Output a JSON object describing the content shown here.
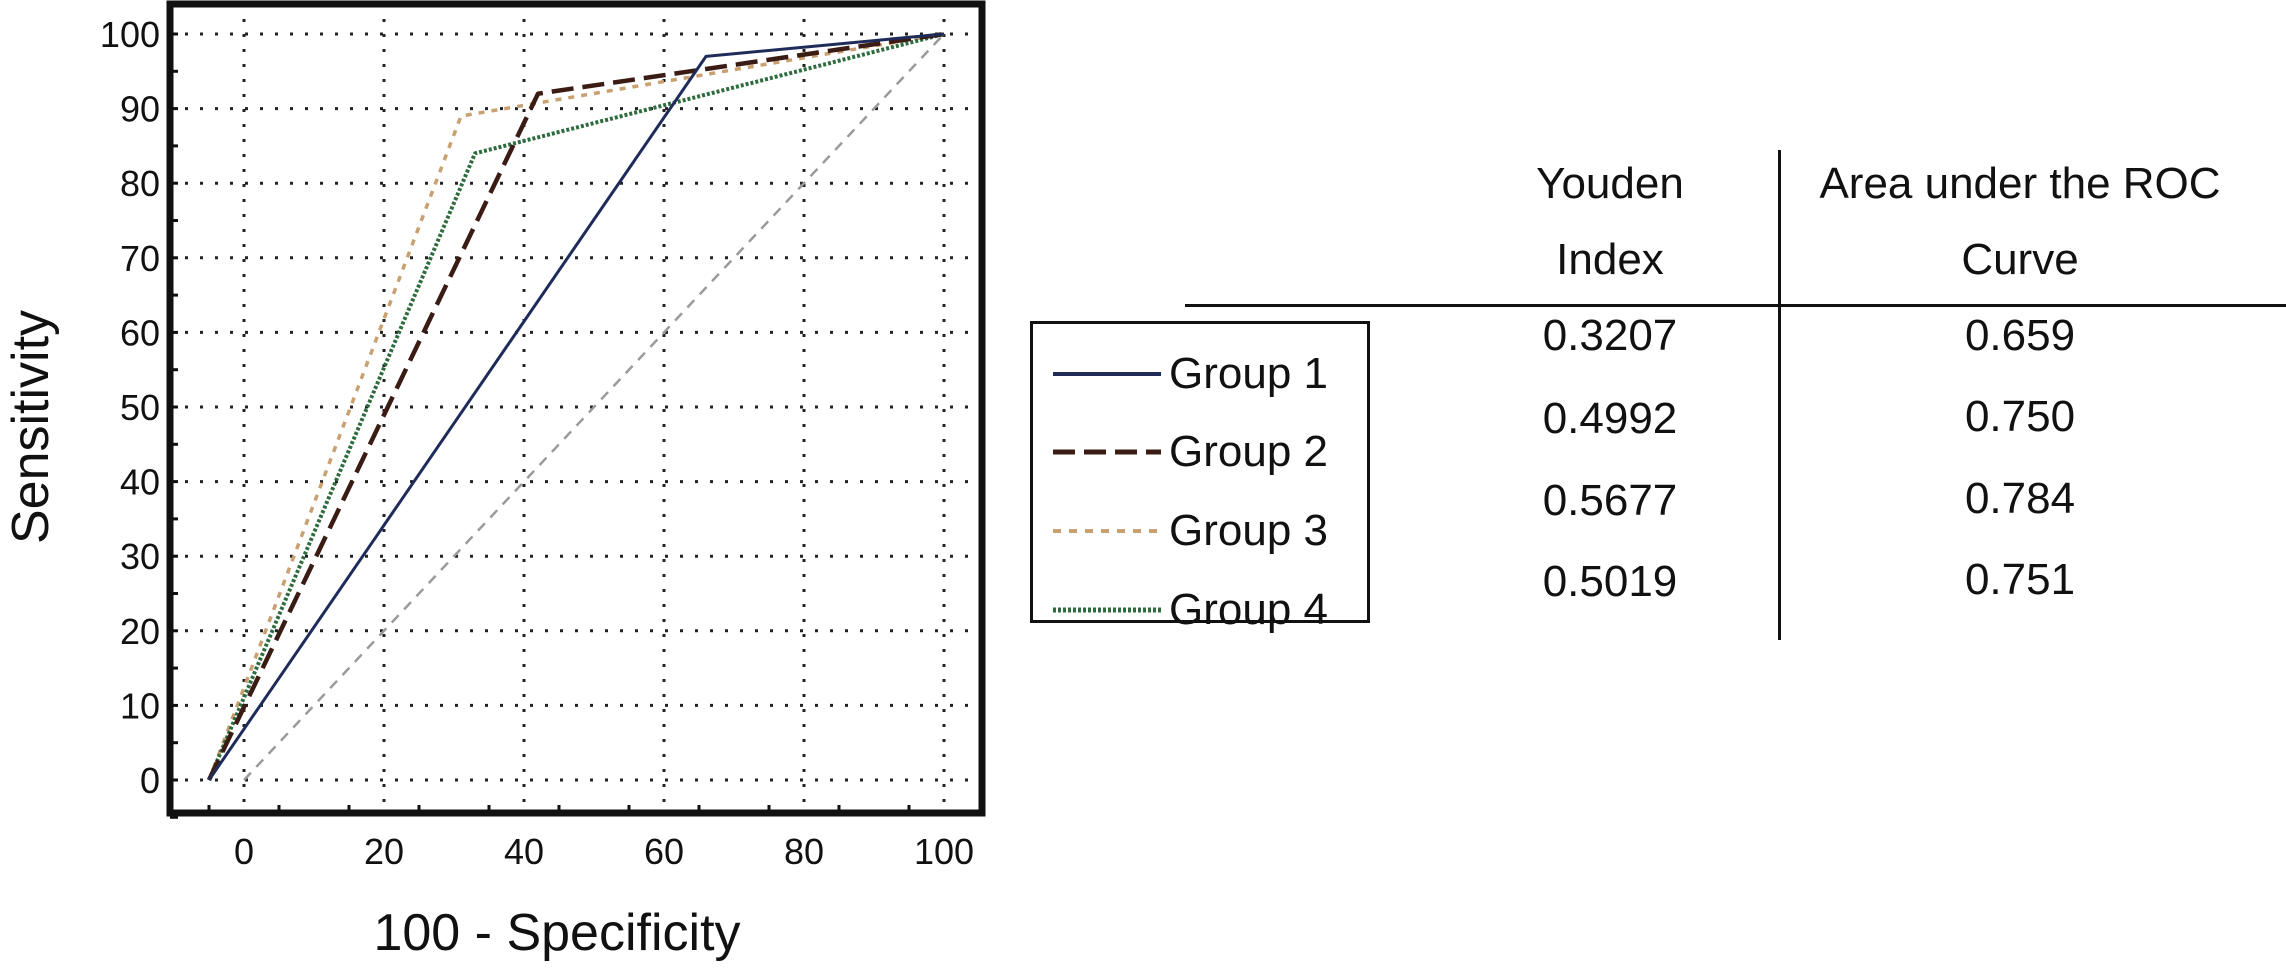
{
  "chart_data": {
    "type": "line",
    "title": "",
    "xlabel": "100  - Specificity",
    "ylabel": "Sensitivity",
    "xlim": [
      -7,
      103
    ],
    "ylim": [
      -5,
      103
    ],
    "xticks": [
      0,
      20,
      40,
      60,
      80,
      100
    ],
    "yticks": [
      0,
      10,
      20,
      30,
      40,
      50,
      60,
      70,
      80,
      90,
      100
    ],
    "grid": true,
    "legend_position": "right of plot",
    "reference_line": {
      "x": [
        0,
        100
      ],
      "y": [
        0,
        100
      ],
      "color": "#9a9a9a"
    },
    "series": [
      {
        "name": "Group 1",
        "style": "solid",
        "color": "#1f2c5a",
        "x": [
          -5,
          66,
          100
        ],
        "y": [
          0,
          97,
          100
        ]
      },
      {
        "name": "Group 2",
        "style": "dashed",
        "color": "#3a1c14",
        "x": [
          -5,
          42,
          100
        ],
        "y": [
          0,
          92,
          100
        ]
      },
      {
        "name": "Group 3",
        "style": "dotted",
        "color": "#c9a070",
        "x": [
          -5,
          31,
          100
        ],
        "y": [
          0,
          89,
          100
        ]
      },
      {
        "name": "Group 4",
        "style": "dense",
        "color": "#2e6b3e",
        "x": [
          -5,
          33,
          100
        ],
        "y": [
          0,
          84,
          100
        ]
      }
    ]
  },
  "stats_table": {
    "headers": [
      {
        "line1": "Youden",
        "line2": "Index"
      },
      {
        "line1": "Area under the ROC",
        "line2": "Curve"
      }
    ],
    "rows": [
      {
        "youden": "0.3207",
        "auc": "0.659"
      },
      {
        "youden": "0.4992",
        "auc": "0.750"
      },
      {
        "youden": "0.5677",
        "auc": "0.784"
      },
      {
        "youden": "0.5019",
        "auc": "0.751"
      }
    ]
  }
}
